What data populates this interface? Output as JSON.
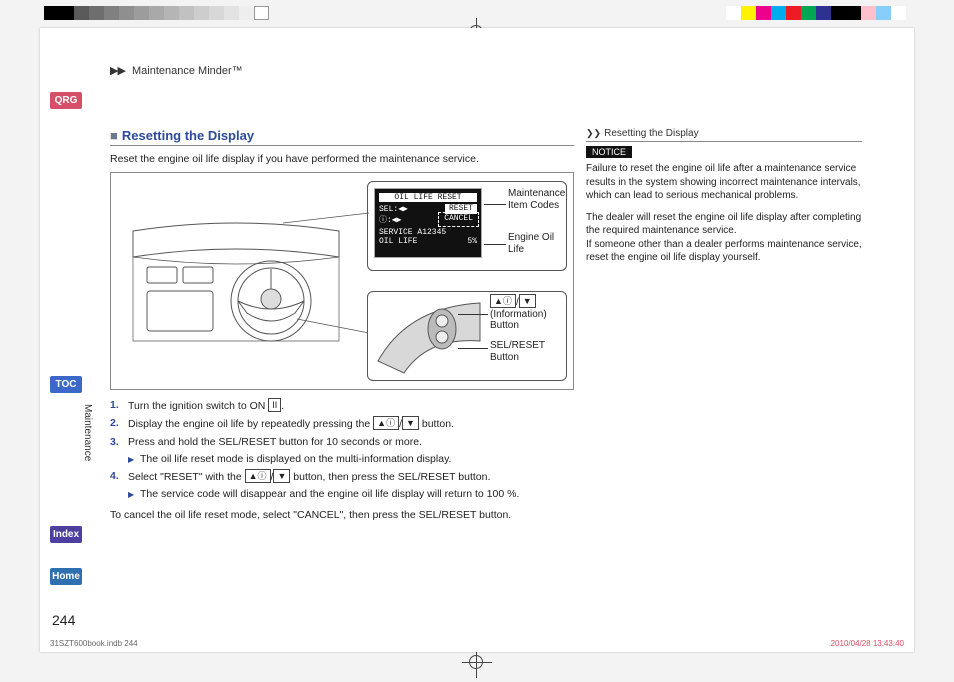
{
  "header": {
    "arrows": "▶▶",
    "text": "Maintenance Minder™"
  },
  "nav": {
    "qrg": "QRG",
    "toc": "TOC",
    "index": "Index",
    "home": "Home",
    "vertical_label": "Maintenance"
  },
  "section": {
    "box_glyph": "■",
    "title": "Resetting the Display",
    "intro": "Reset the engine oil life display if you have performed the maintenance service."
  },
  "figure": {
    "callout_top": {
      "label_codes": "Maintenance\nItem Codes",
      "label_oil": "Engine Oil\nLife",
      "lcd": {
        "line1": "OIL LIFE RESET",
        "sel_label": "SEL:◀▶",
        "reset": "RESET",
        "cancel": "CANCEL",
        "info_icon_label": "ⓘ:◀▶",
        "service_line": "SERVICE  A12345",
        "oil_life_line": "OIL LIFE",
        "oil_life_pct": "5%"
      }
    },
    "callout_bot": {
      "info_button_label": "(Information)\nButton",
      "info_button_glyph_up": "▲",
      "info_button_glyph_down": "▼",
      "info_button_glyph_i": "ⓘ",
      "info_button_slash": "/",
      "selreset_label": "SEL/RESET\nButton"
    }
  },
  "steps": {
    "s1_pre": "Turn the ignition switch to ON ",
    "s1_key": "II",
    "s1_post": ".",
    "s2_pre": "Display the engine oil life by repeatedly pressing the ",
    "s2_post": " button.",
    "s3": "Press and hold the SEL/RESET button for 10 seconds or more.",
    "s3_sub": "The oil life reset mode is displayed on the multi-information display.",
    "s4_pre": "Select \"RESET\" with the ",
    "s4_post": " button, then press the SEL/RESET button.",
    "s4_sub": "The service code will disappear and the engine oil life display will return to 100 %.",
    "cancel": "To cancel the oil life reset mode, select \"CANCEL\", then press the SEL/RESET button."
  },
  "side": {
    "subhead_glyph": "❯❯",
    "subhead": "Resetting the Display",
    "notice": "NOTICE",
    "p1": "Failure to reset the engine oil life after a maintenance service results in the system showing incorrect maintenance intervals, which can lead to serious mechanical problems.",
    "p2": "The dealer will reset the engine oil life display after completing the required maintenance service.\nIf someone other than a dealer performs maintenance service, reset the engine oil life display yourself."
  },
  "page_number": "244",
  "imprint": {
    "left": "31SZT600book.indb   244",
    "right": "2010/04/28   13:43:40"
  },
  "print_bars": {
    "grays": [
      "#000000",
      "#000000",
      "#5a5a5a",
      "#6e6e6e",
      "#808080",
      "#8f8f8f",
      "#9c9c9c",
      "#a9a9a9",
      "#b5b5b5",
      "#c1c1c1",
      "#cdcdcd",
      "#d8d8d8",
      "#e3e3e3",
      "#eeeeee",
      "#ffffff"
    ],
    "colors": [
      "#ffffff",
      "#fff200",
      "#ec008c",
      "#00aeef",
      "#ed1c24",
      "#00a651",
      "#2e3192",
      "#000000",
      "#000000",
      "#ffc0cb",
      "#87cefa",
      "#ffffff"
    ]
  }
}
